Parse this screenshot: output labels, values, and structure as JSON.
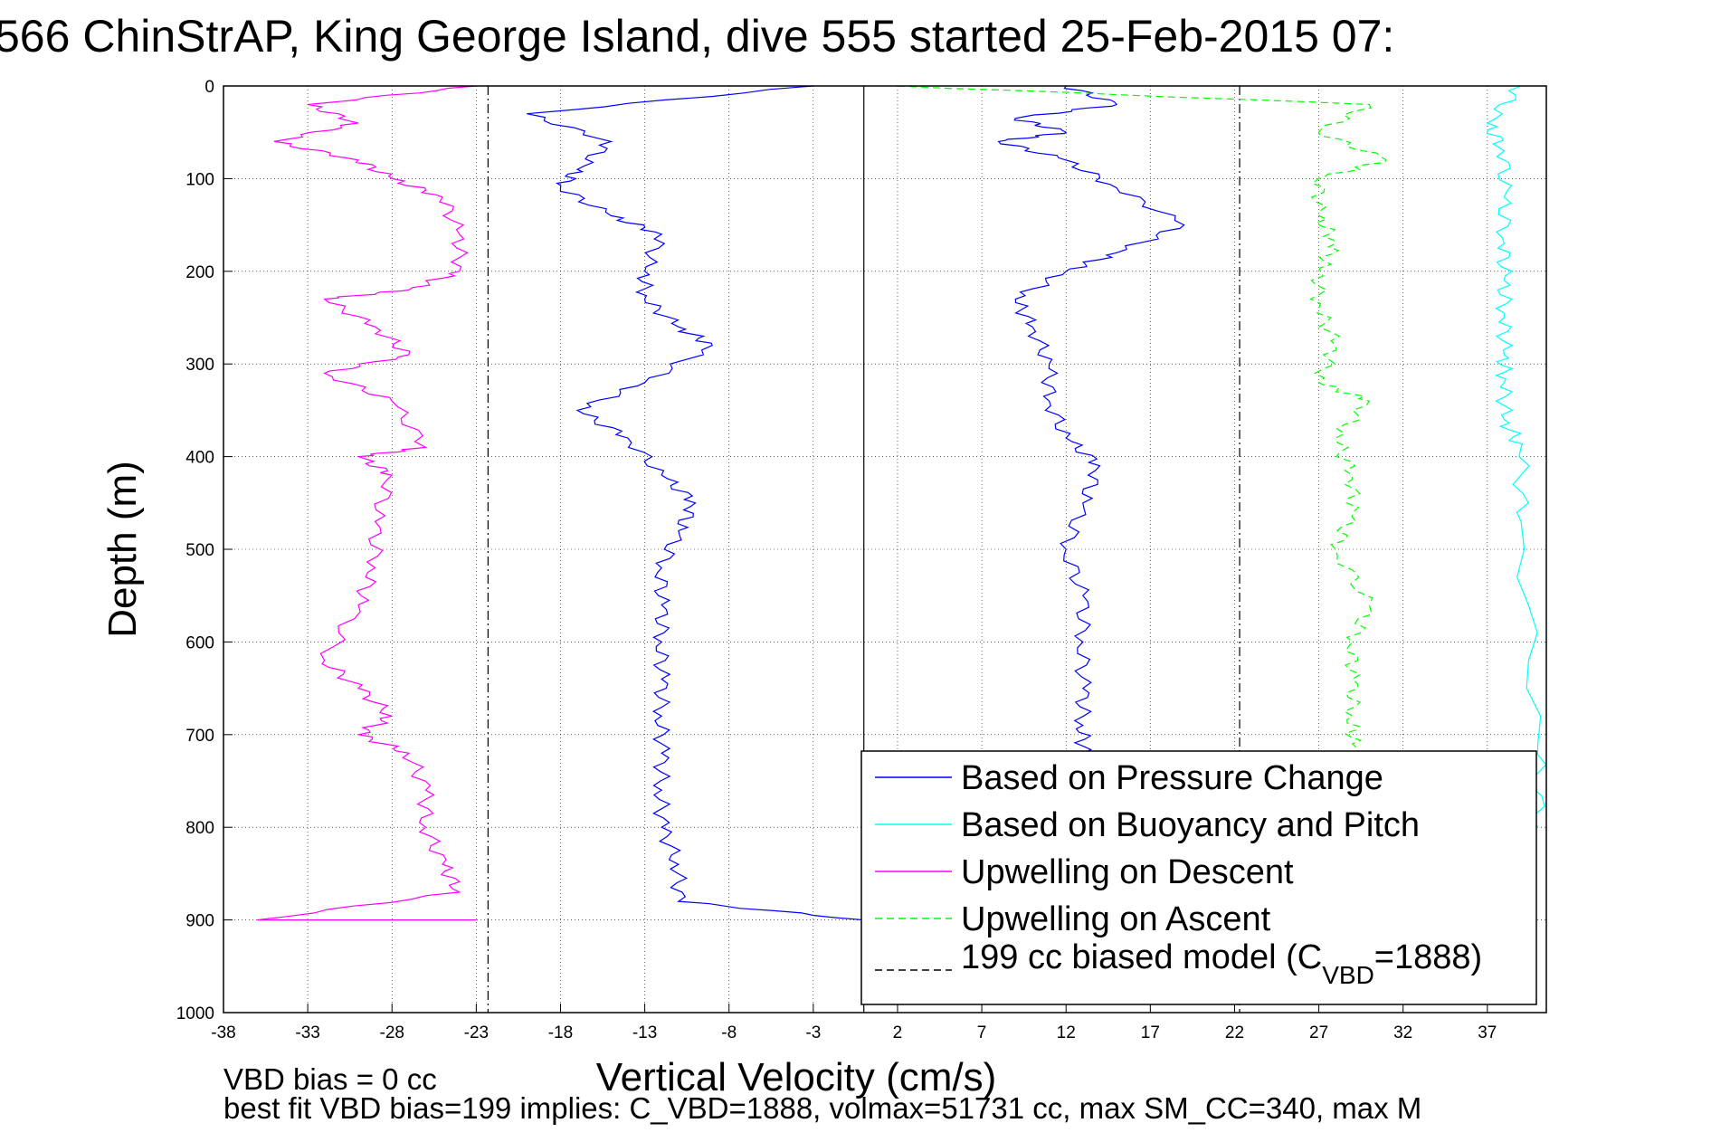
{
  "title": "566 ChinStrAP, King George Island, dive 555 started 25-Feb-2015 07:",
  "notes": {
    "vbd_bias": "VBD bias = 0 cc",
    "best_fit": "best fit VBD bias=199 implies: C_VBD=1888, volmax=51731 cc, max SM_CC=340, max M"
  },
  "legend": {
    "placement": "bottom-right",
    "entries": [
      {
        "label": "Based on Pressure Change",
        "color": "#0000ff",
        "dash": "solid"
      },
      {
        "label": "Based on Buoyancy and Pitch",
        "color": "#00ffff",
        "dash": "solid"
      },
      {
        "label": "Upwelling on Descent",
        "color": "#ff00ff",
        "dash": "solid"
      },
      {
        "label": "Upwelling on Ascent",
        "color": "#00ff00",
        "dash": "dashed"
      }
    ],
    "model_prefix": "199 cc biased model (C",
    "model_sub": "VBD",
    "model_suffix": "=1888)"
  },
  "chart_data": {
    "type": "line",
    "title": "566 ChinStrAP, King George Island, dive 555 started 25-Feb-2015 07:",
    "xlabel": "Vertical Velocity (cm/s)",
    "ylabel": "Depth (m)",
    "xlim": [
      -38,
      40.5
    ],
    "ylim": [
      1000,
      0
    ],
    "y_reversed": true,
    "grid": true,
    "x_ticks": [
      -38,
      -33,
      -28,
      -23,
      -18,
      -13,
      -8,
      -3,
      2,
      7,
      12,
      17,
      22,
      27,
      32,
      37
    ],
    "y_ticks": [
      0,
      100,
      200,
      300,
      400,
      500,
      600,
      700,
      800,
      900,
      1000
    ],
    "vertical_lines": [
      {
        "x": 0,
        "style": "solid",
        "color": "#000000"
      },
      {
        "x": -22.3,
        "style": "dashdot",
        "color": "#000000"
      },
      {
        "x": 22.3,
        "style": "dashdot",
        "color": "#000000"
      }
    ],
    "series": [
      {
        "name": "Based on Pressure Change",
        "color": "#0000ff",
        "dash": "solid",
        "x": [
          -3,
          -20,
          -15,
          -17,
          -18,
          -15,
          -12,
          -13,
          -13,
          -11,
          -9,
          -13,
          -17,
          -14,
          -12,
          -10,
          -11,
          -12,
          -12,
          -12,
          -12,
          -12,
          -12,
          -12,
          -12,
          -11,
          -11,
          0
        ],
        "y": [
          0,
          30,
          60,
          90,
          110,
          140,
          160,
          200,
          230,
          260,
          280,
          320,
          350,
          380,
          420,
          450,
          480,
          520,
          560,
          600,
          640,
          680,
          720,
          760,
          800,
          840,
          880,
          900
        ]
      },
      {
        "name": "Based on Pressure Change",
        "color": "#0000ff",
        "dash": "solid",
        "x": [
          12,
          15,
          9,
          12,
          8,
          12,
          15,
          19,
          15,
          12,
          9,
          10,
          11,
          11,
          12,
          14,
          13,
          12,
          13,
          13,
          13,
          13,
          13,
          14
        ],
        "y": [
          0,
          20,
          35,
          50,
          60,
          80,
          110,
          150,
          180,
          200,
          230,
          260,
          300,
          340,
          380,
          410,
          450,
          500,
          550,
          600,
          650,
          690,
          720,
          760
        ]
      },
      {
        "name": "Based on Buoyancy and Pitch",
        "color": "#00ffff",
        "dash": "solid",
        "x": [
          39,
          37,
          38,
          38,
          38,
          38,
          38,
          38,
          38,
          38,
          39,
          39,
          40,
          40
        ],
        "y": [
          0,
          40,
          70,
          120,
          170,
          210,
          250,
          290,
          320,
          360,
          390,
          470,
          710,
          800
        ]
      },
      {
        "name": "Upwelling on Descent",
        "color": "#ff00ff",
        "dash": "solid",
        "x": [
          -23,
          -33,
          -30,
          -35,
          -30,
          -28,
          -25,
          -24,
          -24,
          -27,
          -32,
          -29,
          -27,
          -32,
          -28,
          -26,
          -30,
          -28,
          -29,
          -29,
          -30,
          -32,
          -30,
          -28,
          -30,
          -27,
          -26,
          -26,
          -25,
          -24,
          -36,
          -23
        ],
        "y": [
          0,
          20,
          40,
          60,
          80,
          100,
          120,
          160,
          200,
          220,
          230,
          260,
          290,
          310,
          340,
          390,
          400,
          420,
          470,
          520,
          560,
          620,
          650,
          680,
          700,
          720,
          760,
          800,
          840,
          870,
          900,
          900
        ]
      },
      {
        "name": "Upwelling on Ascent",
        "color": "#00ff00",
        "dash": "dashed",
        "x": [
          2,
          30,
          27,
          31,
          27,
          27,
          28,
          27,
          27,
          28,
          27,
          30,
          28,
          29,
          29,
          28,
          30,
          29,
          29,
          29,
          29,
          29,
          30
        ],
        "y": [
          0,
          20,
          50,
          80,
          100,
          140,
          170,
          200,
          240,
          280,
          320,
          340,
          380,
          420,
          460,
          500,
          560,
          600,
          640,
          680,
          710,
          760,
          800
        ]
      }
    ]
  }
}
